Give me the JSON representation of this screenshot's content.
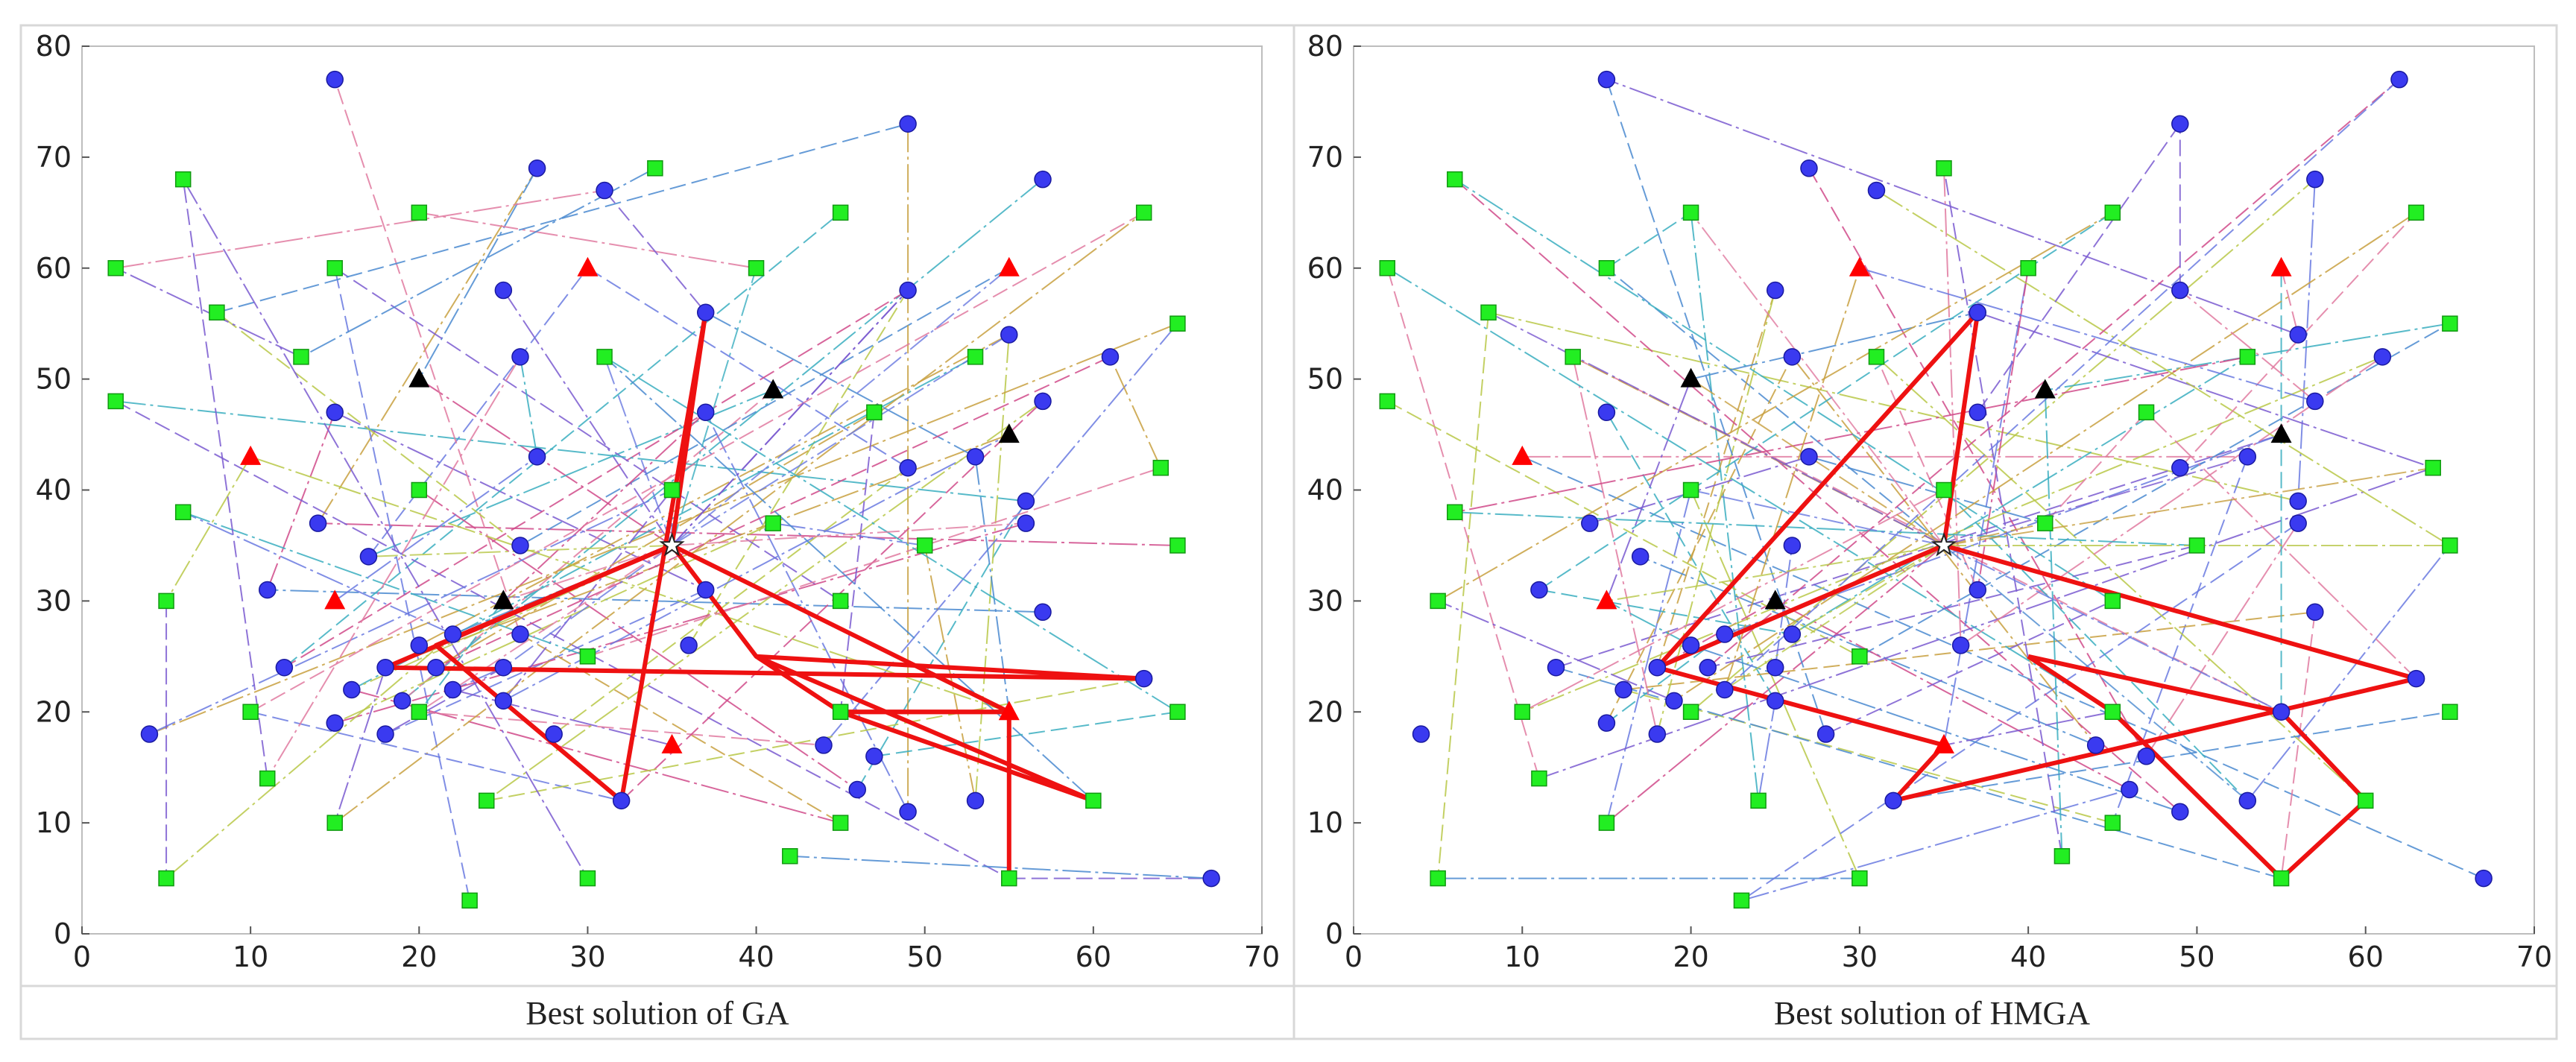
{
  "chart_data": [
    {
      "type": "scatter",
      "title": "Best solution of GA",
      "xlim": [
        0,
        70
      ],
      "ylim": [
        0,
        80
      ],
      "xticks": [
        "0",
        "10",
        "20",
        "30",
        "40",
        "50",
        "60",
        "70"
      ],
      "yticks": [
        "0",
        "10",
        "20",
        "30",
        "40",
        "50",
        "60",
        "70",
        "80"
      ],
      "grid": false,
      "series": [
        {
          "name": "depot",
          "marker": "star",
          "color": "#ffffff",
          "points": [
            [
              35,
              35
            ]
          ]
        },
        {
          "name": "facility-selected",
          "marker": "triangle",
          "color": "#ff0000",
          "points": [
            [
              10,
              43
            ],
            [
              15,
              30
            ],
            [
              30,
              60
            ],
            [
              35,
              17
            ],
            [
              55,
              60
            ],
            [
              55,
              20
            ]
          ]
        },
        {
          "name": "facility-candidate",
          "marker": "triangle",
          "color": "#000000",
          "points": [
            [
              20,
              50
            ],
            [
              25,
              30
            ],
            [
              41,
              49
            ],
            [
              55,
              45
            ]
          ]
        },
        {
          "name": "customer-a",
          "marker": "circle",
          "color": "#3a3af0",
          "points": [
            [
              15,
              77
            ],
            [
              27,
              69
            ],
            [
              31,
              67
            ],
            [
              49,
              73
            ],
            [
              57,
              68
            ],
            [
              25,
              58
            ],
            [
              49,
              58
            ],
            [
              26,
              52
            ],
            [
              37,
              56
            ],
            [
              55,
              54
            ],
            [
              61,
              52
            ],
            [
              15,
              47
            ],
            [
              37,
              47
            ],
            [
              57,
              48
            ],
            [
              27,
              43
            ],
            [
              49,
              42
            ],
            [
              53,
              43
            ],
            [
              14,
              37
            ],
            [
              17,
              34
            ],
            [
              26,
              35
            ],
            [
              56,
              39
            ],
            [
              56,
              37
            ],
            [
              11,
              31
            ],
            [
              37,
              31
            ],
            [
              57,
              29
            ],
            [
              12,
              24
            ],
            [
              18,
              24
            ],
            [
              20,
              26
            ],
            [
              21,
              24
            ],
            [
              22,
              27
            ],
            [
              22,
              22
            ],
            [
              25,
              24
            ],
            [
              26,
              27
            ],
            [
              25,
              21
            ],
            [
              36,
              26
            ],
            [
              19,
              21
            ],
            [
              15,
              19
            ],
            [
              18,
              18
            ],
            [
              28,
              18
            ],
            [
              4,
              18
            ],
            [
              16,
              22
            ],
            [
              44,
              17
            ],
            [
              47,
              16
            ],
            [
              46,
              13
            ],
            [
              49,
              11
            ],
            [
              53,
              12
            ],
            [
              32,
              12
            ],
            [
              63,
              23
            ],
            [
              67,
              5
            ]
          ]
        },
        {
          "name": "customer-b",
          "marker": "square",
          "color": "#22ee22",
          "points": [
            [
              2,
              60
            ],
            [
              2,
              48
            ],
            [
              6,
              68
            ],
            [
              8,
              56
            ],
            [
              6,
              38
            ],
            [
              5,
              30
            ],
            [
              5,
              5
            ],
            [
              10,
              20
            ],
            [
              11,
              14
            ],
            [
              13,
              52
            ],
            [
              15,
              60
            ],
            [
              15,
              10
            ],
            [
              20,
              65
            ],
            [
              20,
              40
            ],
            [
              20,
              20
            ],
            [
              24,
              12
            ],
            [
              23,
              3
            ],
            [
              30,
              25
            ],
            [
              30,
              5
            ],
            [
              31,
              52
            ],
            [
              34,
              69
            ],
            [
              35,
              40
            ],
            [
              40,
              60
            ],
            [
              41,
              37
            ],
            [
              45,
              65
            ],
            [
              45,
              30
            ],
            [
              45,
              20
            ],
            [
              45,
              10
            ],
            [
              42,
              7
            ],
            [
              47,
              47
            ],
            [
              50,
              35
            ],
            [
              53,
              52
            ],
            [
              55,
              5
            ],
            [
              60,
              12
            ],
            [
              63,
              65
            ],
            [
              64,
              42
            ],
            [
              65,
              55
            ],
            [
              65,
              35
            ],
            [
              65,
              20
            ]
          ]
        }
      ],
      "routes_highlighted": [
        [
          [
            35,
            35
          ],
          [
            37,
            56
          ],
          [
            32,
            12
          ],
          [
            21,
            26
          ],
          [
            35,
            35
          ]
        ],
        [
          [
            35,
            35
          ],
          [
            18,
            24
          ],
          [
            63,
            23
          ],
          [
            40,
            25
          ],
          [
            35,
            35
          ]
        ],
        [
          [
            35,
            35
          ],
          [
            55,
            20
          ],
          [
            45,
            20
          ],
          [
            60,
            12
          ],
          [
            40,
            25
          ]
        ],
        [
          [
            55,
            5
          ],
          [
            55,
            20
          ],
          [
            45,
            20
          ],
          [
            40,
            25
          ]
        ]
      ],
      "xlabel": "",
      "ylabel": "",
      "legend": "none"
    },
    {
      "type": "scatter",
      "title": "Best solution of HMGA",
      "xlim": [
        0,
        70
      ],
      "ylim": [
        0,
        80
      ],
      "xticks": [
        "0",
        "10",
        "20",
        "30",
        "40",
        "50",
        "60",
        "70"
      ],
      "yticks": [
        "0",
        "10",
        "20",
        "30",
        "40",
        "50",
        "60",
        "70",
        "80"
      ],
      "grid": false,
      "series": [
        {
          "name": "depot",
          "marker": "star",
          "color": "#ffffff",
          "points": [
            [
              35,
              35
            ]
          ]
        },
        {
          "name": "facility-selected",
          "marker": "triangle",
          "color": "#ff0000",
          "points": [
            [
              10,
              43
            ],
            [
              15,
              30
            ],
            [
              30,
              60
            ],
            [
              35,
              17
            ],
            [
              55,
              60
            ]
          ]
        },
        {
          "name": "facility-candidate",
          "marker": "triangle",
          "color": "#000000",
          "points": [
            [
              20,
              50
            ],
            [
              25,
              30
            ],
            [
              41,
              49
            ],
            [
              55,
              45
            ]
          ]
        },
        {
          "name": "customer-a",
          "marker": "circle",
          "color": "#3a3af0",
          "points": [
            [
              15,
              77
            ],
            [
              27,
              69
            ],
            [
              31,
              67
            ],
            [
              49,
              73
            ],
            [
              57,
              68
            ],
            [
              62,
              77
            ],
            [
              25,
              58
            ],
            [
              49,
              58
            ],
            [
              26,
              52
            ],
            [
              37,
              56
            ],
            [
              56,
              54
            ],
            [
              61,
              52
            ],
            [
              15,
              47
            ],
            [
              37,
              47
            ],
            [
              57,
              48
            ],
            [
              27,
              43
            ],
            [
              49,
              42
            ],
            [
              53,
              43
            ],
            [
              14,
              37
            ],
            [
              17,
              34
            ],
            [
              26,
              35
            ],
            [
              56,
              39
            ],
            [
              56,
              37
            ],
            [
              11,
              31
            ],
            [
              37,
              31
            ],
            [
              57,
              29
            ],
            [
              12,
              24
            ],
            [
              18,
              24
            ],
            [
              20,
              26
            ],
            [
              21,
              24
            ],
            [
              22,
              27
            ],
            [
              22,
              22
            ],
            [
              25,
              24
            ],
            [
              26,
              27
            ],
            [
              25,
              21
            ],
            [
              36,
              26
            ],
            [
              19,
              21
            ],
            [
              15,
              19
            ],
            [
              18,
              18
            ],
            [
              28,
              18
            ],
            [
              4,
              18
            ],
            [
              16,
              22
            ],
            [
              44,
              17
            ],
            [
              47,
              16
            ],
            [
              46,
              13
            ],
            [
              49,
              11
            ],
            [
              53,
              12
            ],
            [
              32,
              12
            ],
            [
              55,
              20
            ],
            [
              63,
              23
            ],
            [
              67,
              5
            ]
          ]
        },
        {
          "name": "customer-b",
          "marker": "square",
          "color": "#22ee22",
          "points": [
            [
              2,
              60
            ],
            [
              2,
              48
            ],
            [
              6,
              68
            ],
            [
              8,
              56
            ],
            [
              6,
              38
            ],
            [
              5,
              30
            ],
            [
              5,
              5
            ],
            [
              10,
              20
            ],
            [
              11,
              14
            ],
            [
              13,
              52
            ],
            [
              15,
              60
            ],
            [
              15,
              10
            ],
            [
              20,
              65
            ],
            [
              20,
              40
            ],
            [
              20,
              20
            ],
            [
              24,
              12
            ],
            [
              23,
              3
            ],
            [
              30,
              25
            ],
            [
              30,
              5
            ],
            [
              31,
              52
            ],
            [
              35,
              69
            ],
            [
              35,
              40
            ],
            [
              40,
              60
            ],
            [
              41,
              37
            ],
            [
              45,
              65
            ],
            [
              45,
              30
            ],
            [
              45,
              20
            ],
            [
              45,
              10
            ],
            [
              42,
              7
            ],
            [
              47,
              47
            ],
            [
              50,
              35
            ],
            [
              53,
              52
            ],
            [
              55,
              5
            ],
            [
              60,
              12
            ],
            [
              63,
              65
            ],
            [
              64,
              42
            ],
            [
              65,
              55
            ],
            [
              65,
              35
            ],
            [
              65,
              20
            ]
          ]
        }
      ],
      "routes_highlighted": [
        [
          [
            35,
            35
          ],
          [
            37,
            56
          ],
          [
            18,
            24
          ],
          [
            35,
            17
          ],
          [
            32,
            12
          ],
          [
            63,
            23
          ],
          [
            35,
            35
          ]
        ],
        [
          [
            35,
            35
          ],
          [
            18,
            24
          ]
        ],
        [
          [
            40,
            25
          ],
          [
            55,
            20
          ],
          [
            60,
            12
          ],
          [
            55,
            5
          ],
          [
            45,
            20
          ],
          [
            40,
            25
          ]
        ]
      ],
      "xlabel": "",
      "ylabel": "",
      "legend": "none"
    }
  ]
}
